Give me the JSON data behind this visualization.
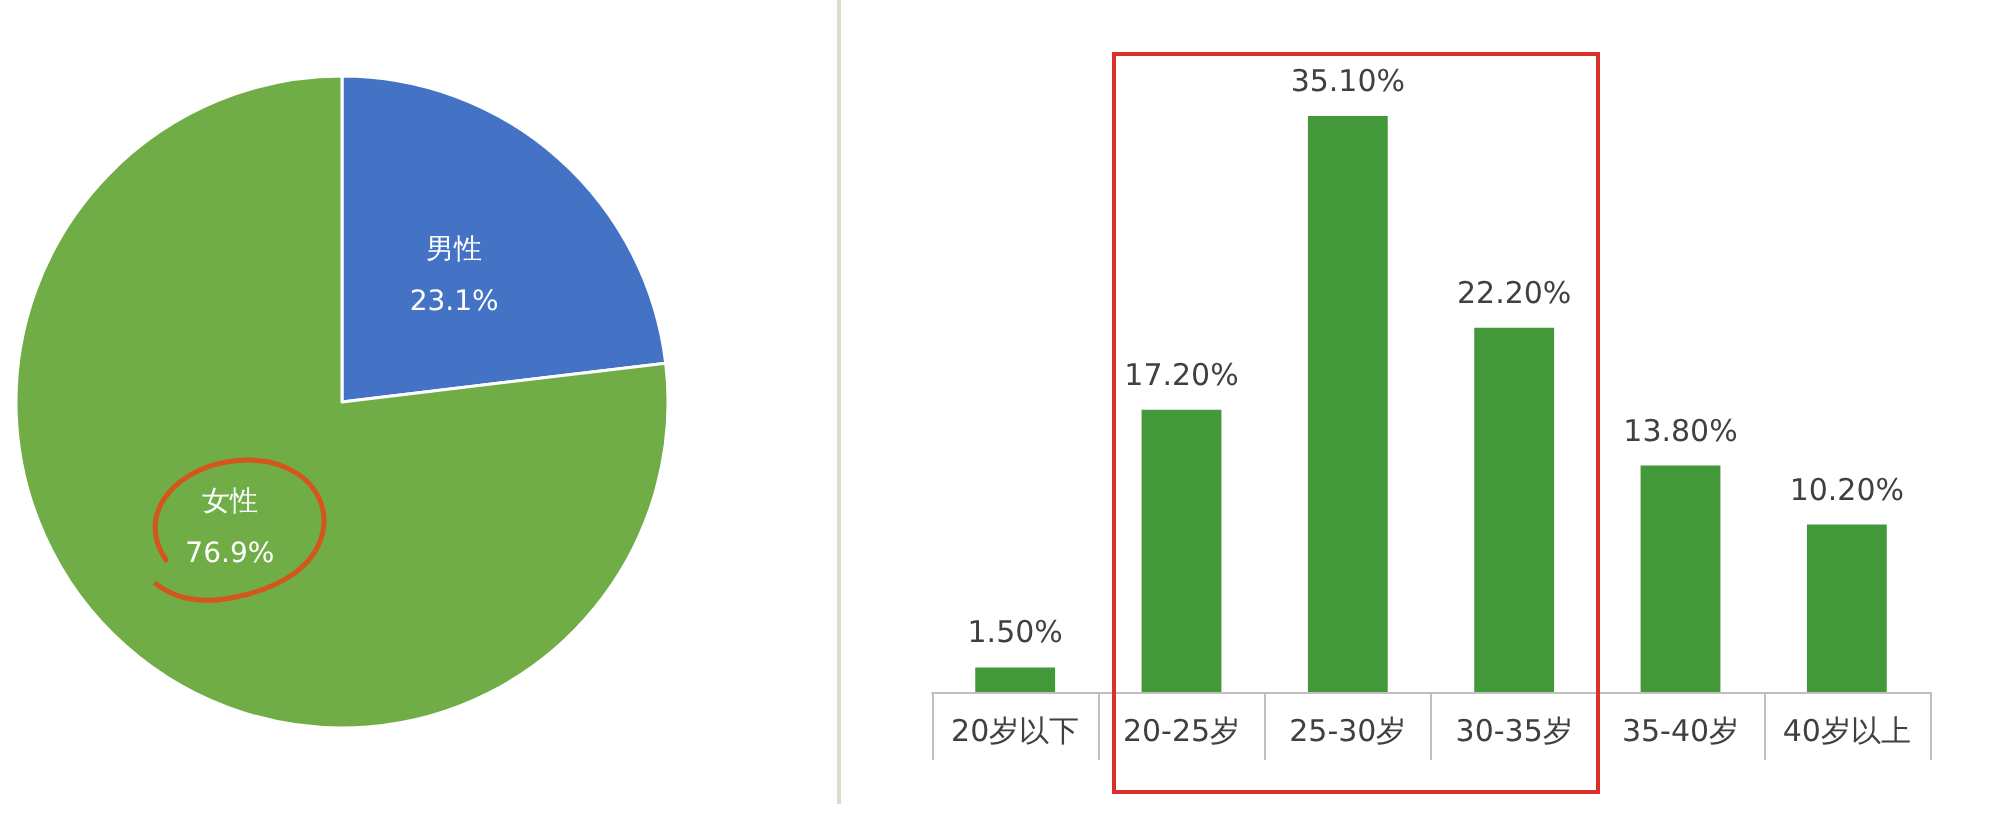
{
  "chart_data": [
    {
      "type": "pie",
      "categories": [
        "男性",
        "女性"
      ],
      "values": [
        23.1,
        76.9
      ],
      "colors": [
        "#4472c4",
        "#70ad47"
      ],
      "value_labels": [
        "23.1%",
        "76.9%"
      ]
    },
    {
      "type": "bar",
      "categories": [
        "20岁以下",
        "20-25岁",
        "25-30岁",
        "30-35岁",
        "35-40岁",
        "40岁以上"
      ],
      "values": [
        1.5,
        17.2,
        35.1,
        22.2,
        13.8,
        10.2
      ],
      "color": "#43993a",
      "value_labels": [
        "1.50%",
        "17.20%",
        "35.10%",
        "22.20%",
        "13.80%",
        "10.20%"
      ],
      "grid": false
    }
  ]
}
